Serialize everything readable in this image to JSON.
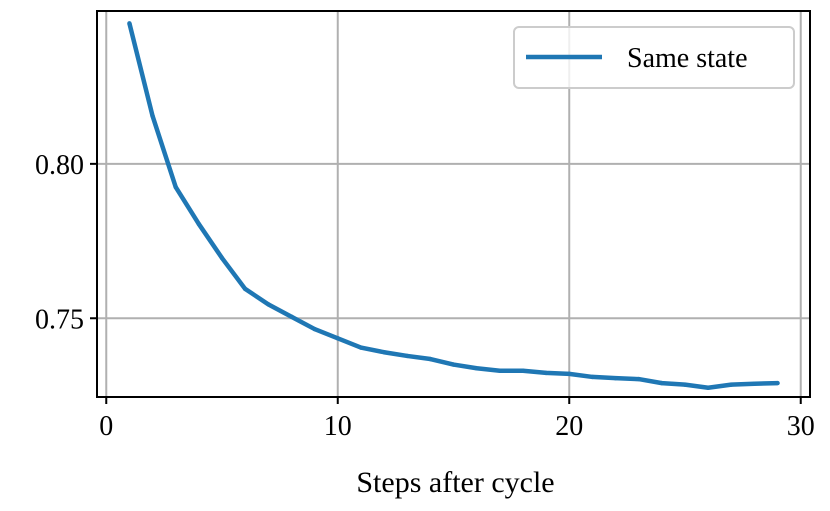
{
  "chart_data": {
    "type": "line",
    "title": "",
    "xlabel": "Steps after cycle",
    "ylabel": "",
    "xlim": [
      -0.4,
      30.4
    ],
    "ylim": [
      0.7245,
      0.8495
    ],
    "x_ticks": [
      0,
      10,
      20,
      30
    ],
    "x_tick_labels": [
      "0",
      "10",
      "20",
      "30"
    ],
    "y_ticks": [
      0.75,
      0.8
    ],
    "y_tick_labels": [
      "0.75",
      "0.80"
    ],
    "grid": true,
    "legend": "upper right",
    "series": [
      {
        "name": "Same state",
        "color": "#1f77b4",
        "x": [
          1,
          2,
          3,
          4,
          5,
          6,
          7,
          8,
          9,
          10,
          11,
          12,
          13,
          14,
          15,
          16,
          17,
          18,
          19,
          20,
          21,
          22,
          23,
          24,
          25,
          26,
          27,
          28,
          29
        ],
        "y": [
          0.8455,
          0.8155,
          0.7925,
          0.7805,
          0.7695,
          0.7595,
          0.7545,
          0.7505,
          0.7465,
          0.7435,
          0.7405,
          0.739,
          0.7378,
          0.7368,
          0.735,
          0.7338,
          0.733,
          0.733,
          0.7323,
          0.732,
          0.731,
          0.7306,
          0.7303,
          0.729,
          0.7285,
          0.7275,
          0.7285,
          0.7288,
          0.729
        ]
      }
    ]
  }
}
